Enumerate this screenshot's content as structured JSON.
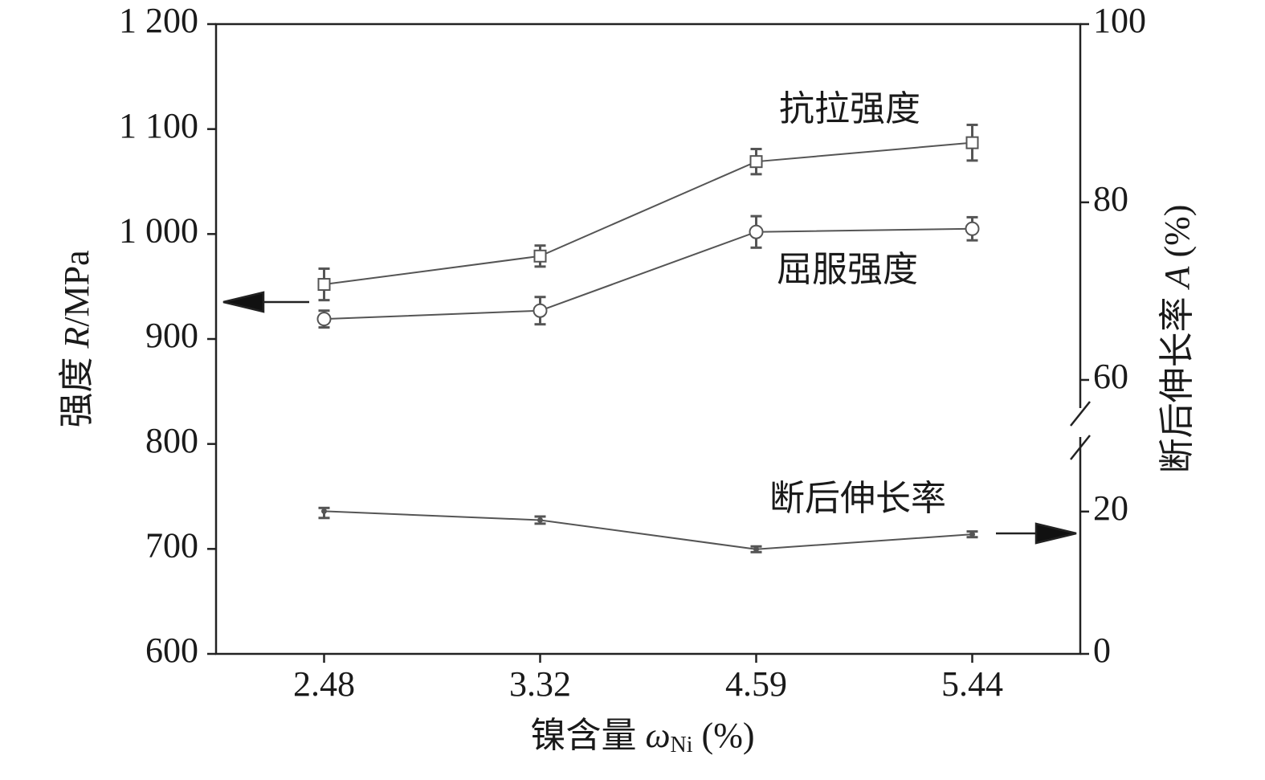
{
  "chart_data": {
    "type": "line",
    "x_label": {
      "text": "镍含量",
      "symbol": "ω",
      "subscript": "Ni",
      "unit": "(%)"
    },
    "y_label": {
      "text": "强度",
      "symbol": "R",
      "unit": "/MPa"
    },
    "y2_label": {
      "text": "断后伸长率",
      "symbol": "A",
      "unit": "(%)"
    },
    "categories": [
      "2.48",
      "3.32",
      "4.59",
      "5.44"
    ],
    "ylim": [
      600,
      1200
    ],
    "yticks": [
      600,
      700,
      800,
      900,
      {
        "value": 1000,
        "label": "1 000"
      },
      {
        "value": 1100,
        "label": "1 100"
      },
      {
        "value": 1200,
        "label": "1 200"
      }
    ],
    "y2lim": [
      0,
      100
    ],
    "y2ticks": [
      0,
      20,
      60,
      80,
      100
    ],
    "y2_axis_break": true,
    "series": [
      {
        "name": "抗拉强度",
        "marker": "square",
        "color": "#555555",
        "values": [
          952,
          979,
          1069,
          1087
        ],
        "errors": [
          15,
          10,
          12,
          17
        ]
      },
      {
        "name": "屈服强度",
        "marker": "circle",
        "color": "#555555",
        "values": [
          919,
          927,
          1002,
          1005
        ],
        "errors": [
          8,
          13,
          15,
          11
        ]
      },
      {
        "name": "断后伸长率",
        "marker": "dot",
        "color": "#555555",
        "axis": "y2",
        "values": [
          20.1,
          18.8,
          14.7,
          16.8
        ],
        "errors": [
          1.0,
          0.5,
          0.4,
          0.4
        ]
      }
    ]
  }
}
